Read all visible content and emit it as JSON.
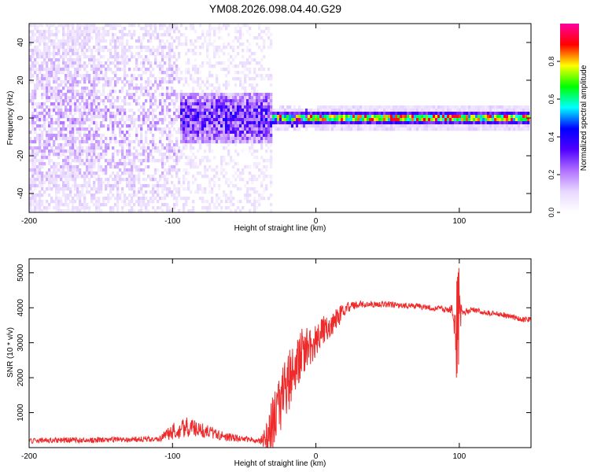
{
  "title": "YM08.2026.098.04.40.G29",
  "chart_data": [
    {
      "type": "heatmap",
      "name": "spectrogram",
      "xlabel": "Height of straight line (km)",
      "ylabel": "Frequency (Hz)",
      "xlim": [
        -200,
        150
      ],
      "ylim": [
        -50,
        50
      ],
      "xticks": [
        "-200",
        "-100",
        "0",
        "100"
      ],
      "xtick_values": [
        -200,
        -100,
        0,
        100
      ],
      "yticks": [
        "-40",
        "-20",
        "0",
        "20",
        "40"
      ],
      "ytick_values": [
        -40,
        -20,
        0,
        20,
        40
      ],
      "colorbar": {
        "label": "Normalized spectral amplitude",
        "range": [
          0,
          1
        ],
        "ticks": [
          "0.0",
          "0.2",
          "0.4",
          "0.6",
          "0.8"
        ],
        "tick_values": [
          0.0,
          0.2,
          0.4,
          0.6,
          0.8
        ],
        "stops": [
          "#ffffff",
          "#e8d8ff",
          "#b070ff",
          "#5000ff",
          "#0000ff",
          "#00ffff",
          "#00ff00",
          "#ffff00",
          "#ff0000",
          "#ff00a0"
        ]
      },
      "regions": [
        {
          "x": [
            -200,
            -95
          ],
          "spread_hz": 50,
          "level": 0.12,
          "desc": "broadband noise"
        },
        {
          "x": [
            -95,
            -30
          ],
          "spread_hz": 12,
          "level": 0.3,
          "desc": "concentrating energy"
        },
        {
          "x": [
            -30,
            150
          ],
          "spread_hz": 3,
          "level": 0.9,
          "desc": "narrow carrier near 0 Hz"
        }
      ]
    },
    {
      "type": "line",
      "name": "snr",
      "xlabel": "Height of straight line (km)",
      "ylabel": "SNR (10 * v/v)",
      "xlim": [
        -200,
        150
      ],
      "ylim": [
        0,
        5400
      ],
      "xticks": [
        "-200",
        "-100",
        "0",
        "100"
      ],
      "xtick_values": [
        -200,
        -100,
        0,
        100
      ],
      "yticks": [
        "1000",
        "2000",
        "3000",
        "4000",
        "5000"
      ],
      "ytick_values": [
        1000,
        2000,
        3000,
        4000,
        5000
      ],
      "color": "#ee2a2a",
      "x": [
        -200,
        -150,
        -110,
        -100,
        -90,
        -80,
        -70,
        -60,
        -50,
        -40,
        -35,
        -30,
        -25,
        -20,
        -15,
        -10,
        -5,
        0,
        5,
        10,
        15,
        20,
        25,
        30,
        40,
        50,
        60,
        70,
        80,
        90,
        95,
        98,
        100,
        102,
        105,
        110,
        120,
        130,
        140,
        150
      ],
      "values": [
        200,
        220,
        250,
        450,
        600,
        500,
        400,
        300,
        250,
        200,
        300,
        700,
        1200,
        1800,
        2300,
        2700,
        2900,
        3100,
        3300,
        3500,
        3700,
        3950,
        4050,
        4100,
        4100,
        4100,
        4050,
        4050,
        4000,
        3950,
        3950,
        3300,
        3800,
        3850,
        3900,
        3950,
        3850,
        3800,
        3700,
        3650
      ],
      "noise_amplitude": [
        80,
        80,
        80,
        250,
        300,
        220,
        160,
        120,
        80,
        80,
        350,
        800,
        900,
        900,
        800,
        700,
        600,
        500,
        450,
        350,
        300,
        200,
        120,
        100,
        90,
        90,
        80,
        80,
        80,
        90,
        150,
        800,
        700,
        150,
        90,
        80,
        80,
        80,
        80,
        80
      ]
    }
  ]
}
